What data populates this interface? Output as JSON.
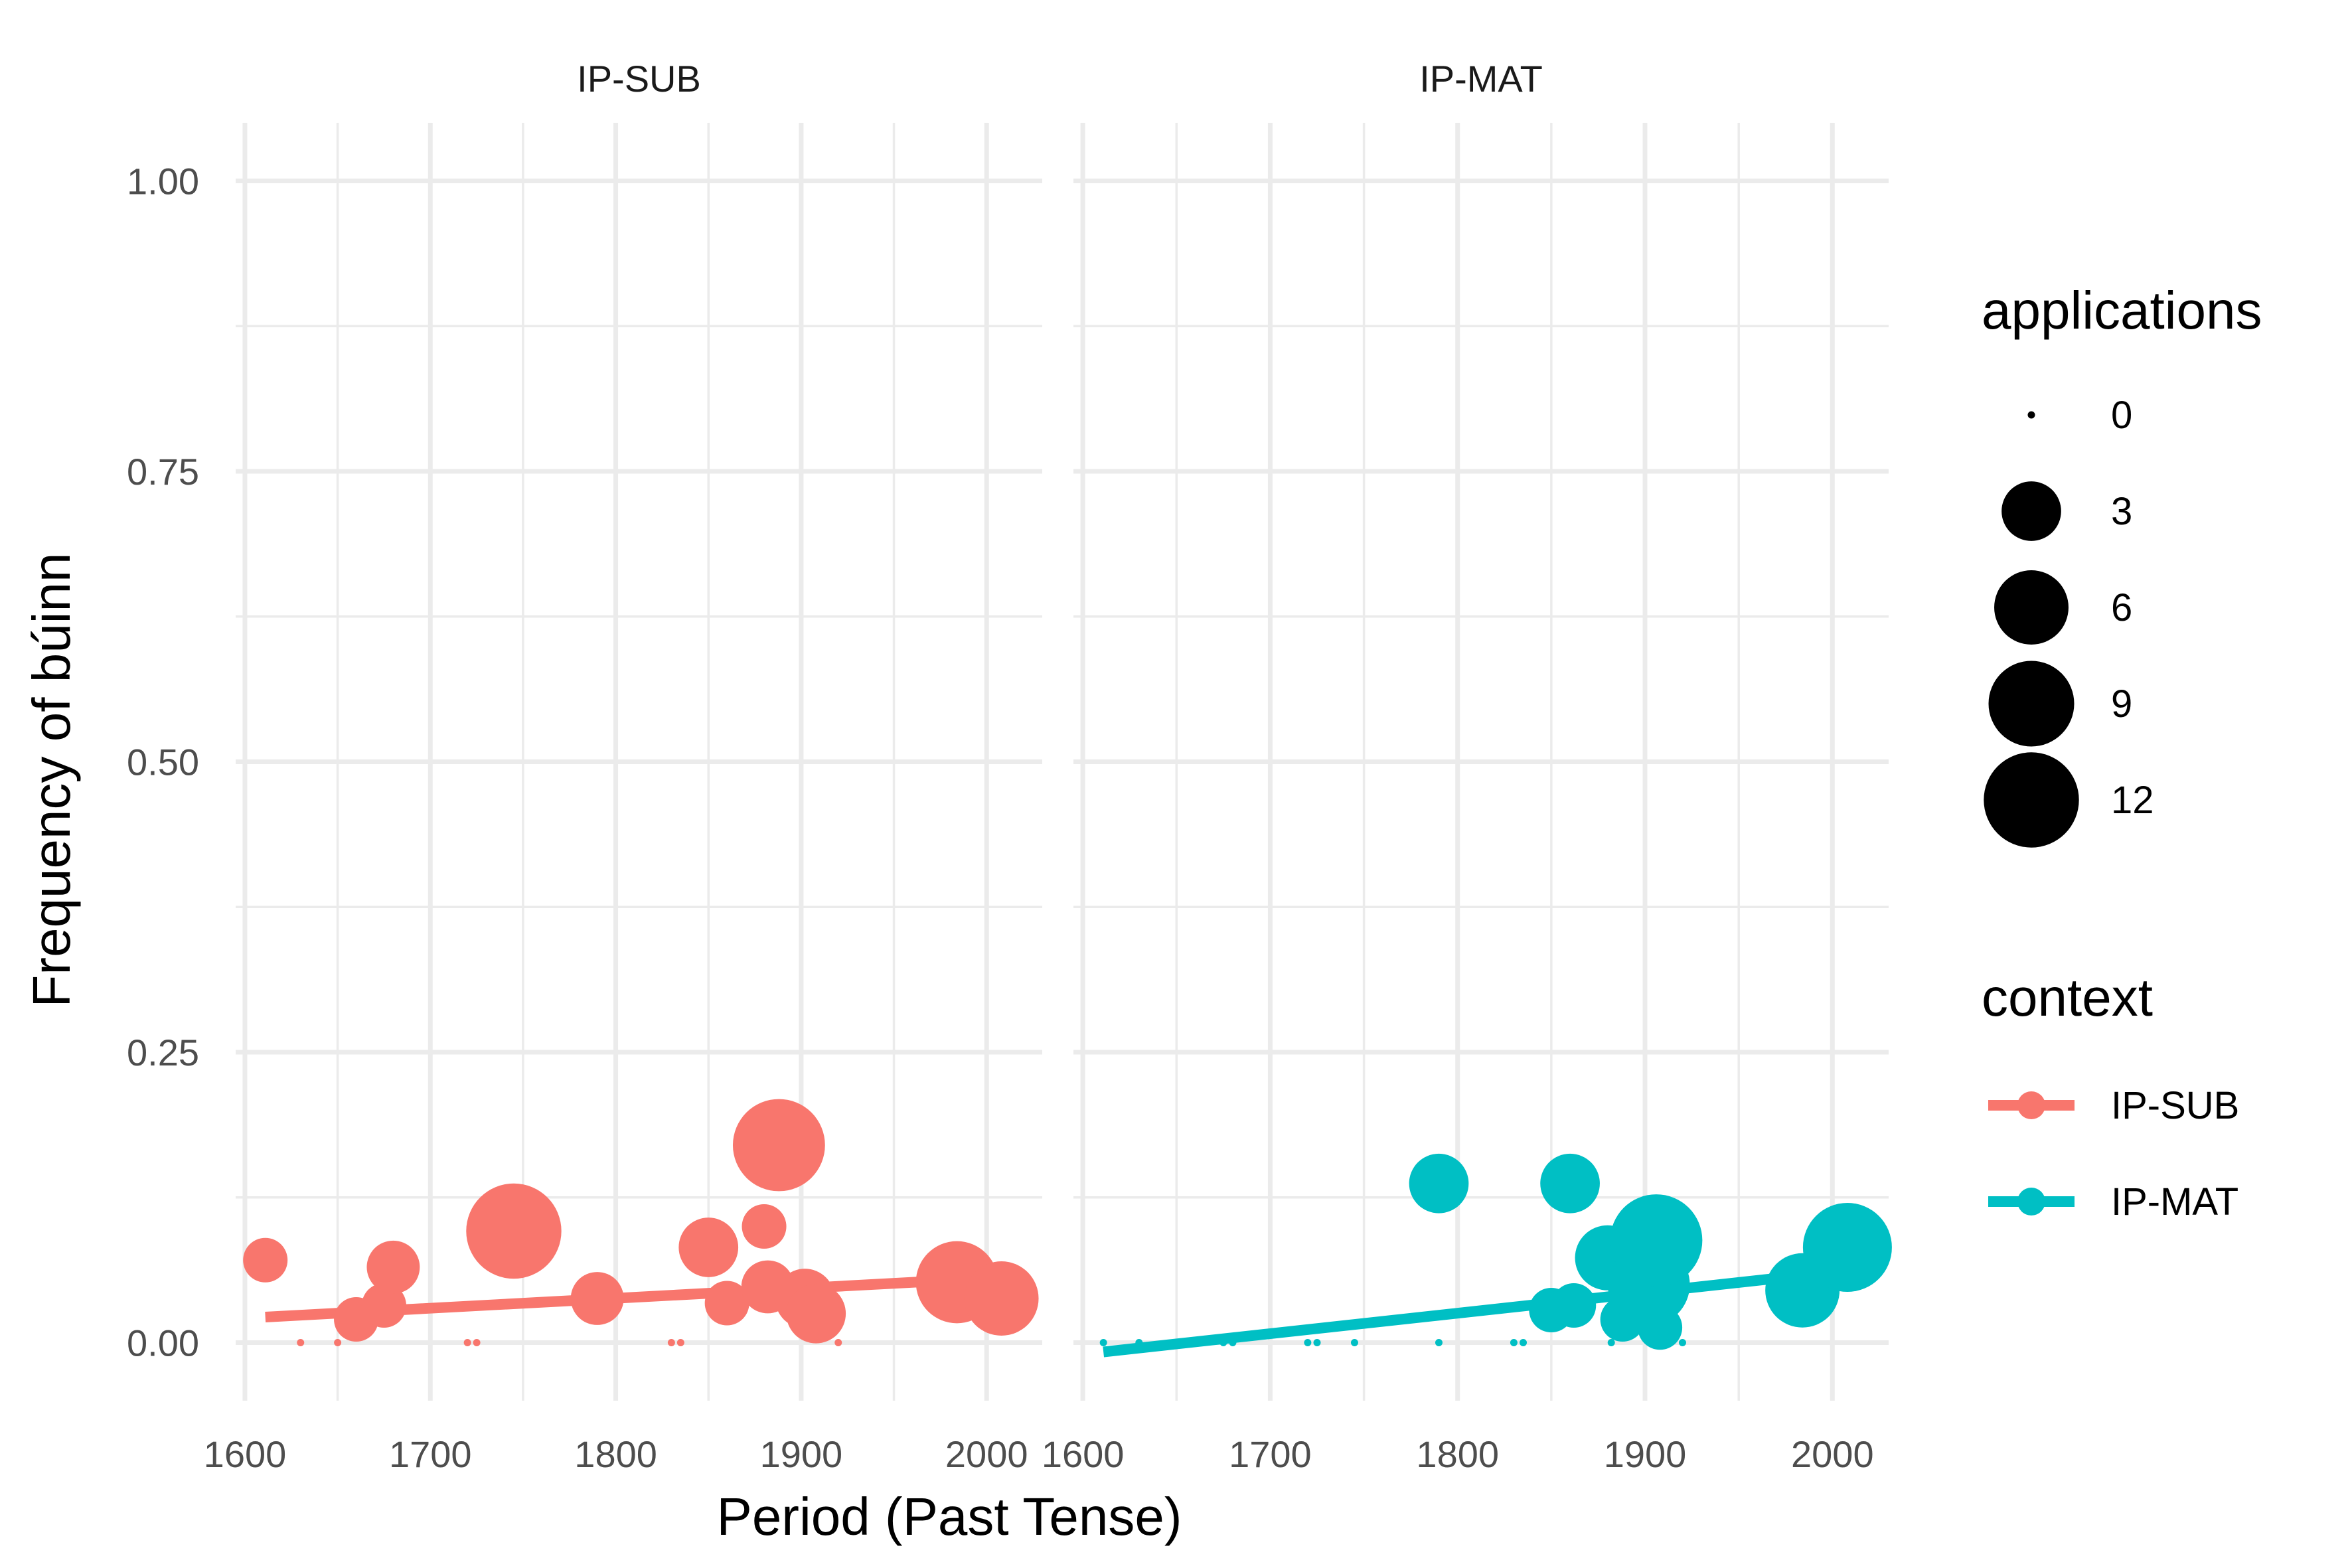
{
  "chart_data": {
    "type": "scatter",
    "xlabel": "Period (Past Tense)",
    "ylabel": "Frequency of búinn",
    "xlim": [
      1595,
      2030
    ],
    "ylim": [
      -0.05,
      1.05
    ],
    "x_ticks": [
      1600,
      1700,
      1800,
      1900,
      2000
    ],
    "y_ticks": [
      0.0,
      0.25,
      0.5,
      0.75,
      1.0
    ],
    "x_tick_labels": [
      "1600",
      "1700",
      "1800",
      "1900",
      "2000"
    ],
    "y_tick_labels": [
      "0.00",
      "0.25",
      "0.50",
      "0.75",
      "1.00"
    ],
    "grid": true,
    "legend_position": "right",
    "size_legend": {
      "title": "applications",
      "values": [
        0,
        3,
        6,
        9,
        12
      ],
      "labels": [
        "0",
        "3",
        "6",
        "9",
        "12"
      ]
    },
    "color_legend": {
      "title": "context",
      "entries": [
        {
          "label": "IP-SUB",
          "color": "#F8766D"
        },
        {
          "label": "IP-MAT",
          "color": "#00BFC4"
        }
      ]
    },
    "panels": [
      {
        "name": "IP-SUB",
        "color": "#F8766D",
        "trend": {
          "x": [
            1611,
            2008
          ],
          "y": [
            0.022,
            0.056
          ]
        },
        "points": [
          {
            "x": 1611,
            "y": 0.071,
            "applications": 1
          },
          {
            "x": 1630,
            "y": 0.0,
            "applications": 0
          },
          {
            "x": 1650,
            "y": 0.0,
            "applications": 0
          },
          {
            "x": 1660,
            "y": 0.02,
            "applications": 1
          },
          {
            "x": 1675,
            "y": 0.032,
            "applications": 1
          },
          {
            "x": 1680,
            "y": 0.065,
            "applications": 2
          },
          {
            "x": 1720,
            "y": 0.0,
            "applications": 0
          },
          {
            "x": 1725,
            "y": 0.0,
            "applications": 0
          },
          {
            "x": 1745,
            "y": 0.096,
            "applications": 12
          },
          {
            "x": 1790,
            "y": 0.038,
            "applications": 2
          },
          {
            "x": 1830,
            "y": 0.0,
            "applications": 0
          },
          {
            "x": 1835,
            "y": 0.0,
            "applications": 0
          },
          {
            "x": 1850,
            "y": 0.082,
            "applications": 3
          },
          {
            "x": 1860,
            "y": 0.034,
            "applications": 1
          },
          {
            "x": 1880,
            "y": 0.1,
            "applications": 1
          },
          {
            "x": 1882,
            "y": 0.048,
            "applications": 2
          },
          {
            "x": 1888,
            "y": 0.17,
            "applications": 11
          },
          {
            "x": 1902,
            "y": 0.038,
            "applications": 3
          },
          {
            "x": 1908,
            "y": 0.025,
            "applications": 3
          },
          {
            "x": 1920,
            "y": 0.0,
            "applications": 0
          },
          {
            "x": 1984,
            "y": 0.052,
            "applications": 8
          },
          {
            "x": 2008,
            "y": 0.038,
            "applications": 6
          }
        ]
      },
      {
        "name": "IP-MAT",
        "color": "#00BFC4",
        "trend": {
          "x": [
            1611,
            2008
          ],
          "y": [
            -0.008,
            0.062
          ]
        },
        "points": [
          {
            "x": 1611,
            "y": 0.0,
            "applications": 0
          },
          {
            "x": 1630,
            "y": 0.0,
            "applications": 0
          },
          {
            "x": 1650,
            "y": 0.0,
            "applications": 0
          },
          {
            "x": 1660,
            "y": 0.0,
            "applications": 0
          },
          {
            "x": 1675,
            "y": 0.0,
            "applications": 0
          },
          {
            "x": 1680,
            "y": 0.0,
            "applications": 0
          },
          {
            "x": 1720,
            "y": 0.0,
            "applications": 0
          },
          {
            "x": 1725,
            "y": 0.0,
            "applications": 0
          },
          {
            "x": 1745,
            "y": 0.0,
            "applications": 0
          },
          {
            "x": 1790,
            "y": 0.137,
            "applications": 3
          },
          {
            "x": 1790,
            "y": 0.0,
            "applications": 0
          },
          {
            "x": 1830,
            "y": 0.0,
            "applications": 0
          },
          {
            "x": 1835,
            "y": 0.0,
            "applications": 0
          },
          {
            "x": 1850,
            "y": 0.028,
            "applications": 1
          },
          {
            "x": 1860,
            "y": 0.137,
            "applications": 3
          },
          {
            "x": 1862,
            "y": 0.032,
            "applications": 1
          },
          {
            "x": 1880,
            "y": 0.073,
            "applications": 4
          },
          {
            "x": 1882,
            "y": 0.0,
            "applications": 0
          },
          {
            "x": 1888,
            "y": 0.02,
            "applications": 1
          },
          {
            "x": 1902,
            "y": 0.05,
            "applications": 8
          },
          {
            "x": 1906,
            "y": 0.088,
            "applications": 11
          },
          {
            "x": 1908,
            "y": 0.013,
            "applications": 1
          },
          {
            "x": 1920,
            "y": 0.0,
            "applications": 0
          },
          {
            "x": 1984,
            "y": 0.045,
            "applications": 6
          },
          {
            "x": 2008,
            "y": 0.082,
            "applications": 10
          }
        ]
      }
    ]
  }
}
